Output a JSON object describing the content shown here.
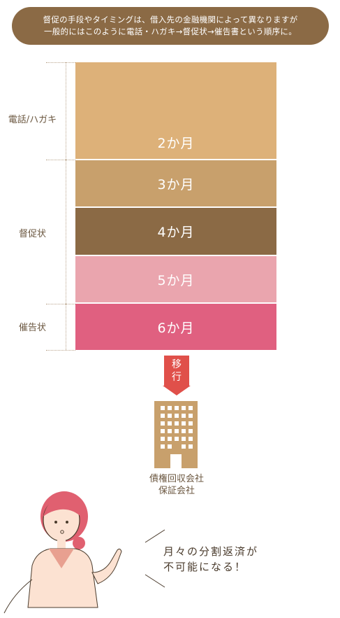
{
  "header": {
    "line1": "督促の手段やタイミングは、借入先の金融機関によって異なりますが",
    "line2": "一般的にはこのように電話・ハガキ→督促状→催告書という順序に。"
  },
  "stages": [
    {
      "label": "2か月",
      "color": "#ddb179"
    },
    {
      "label": "3か月",
      "color": "#c8a06c"
    },
    {
      "label": "4か月",
      "color": "#8b6a45"
    },
    {
      "label": "5か月",
      "color": "#eaa5ae"
    },
    {
      "label": "6か月",
      "color": "#e06080"
    }
  ],
  "side_labels": {
    "phone": "電話/ハガキ",
    "notice": "督促状",
    "demand": "催告状"
  },
  "transition": {
    "line1": "移",
    "line2": "行",
    "color": "#e0504a"
  },
  "company": {
    "line1": "債権回収会社",
    "line2": "保証会社"
  },
  "speech": {
    "line1": "月々の分割返済が",
    "line2": "不可能になる！"
  },
  "icons": {
    "building": "building-icon",
    "person": "woman-pointing-icon"
  }
}
